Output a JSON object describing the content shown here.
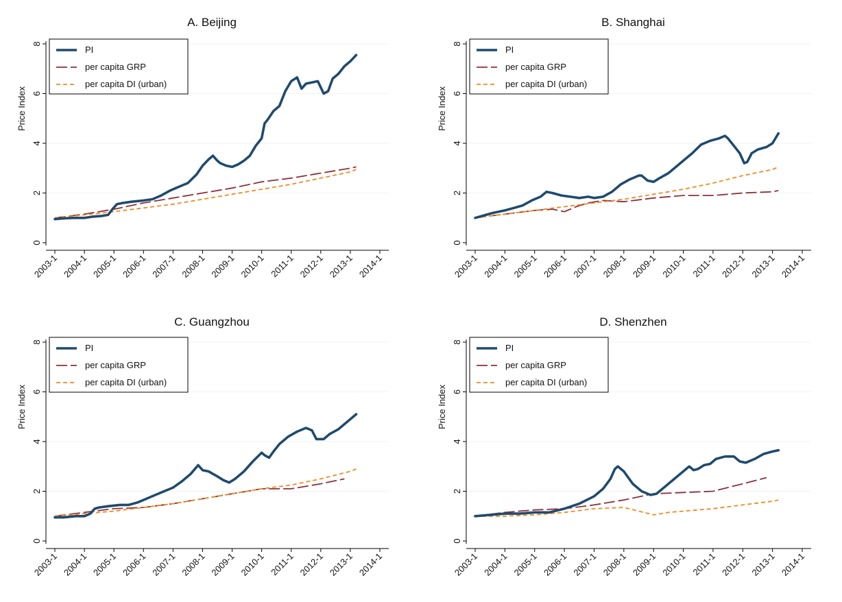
{
  "colors": {
    "pi": "#1f4a6e",
    "grp": "#8b2f3a",
    "di": "#f08a1e",
    "grid": "#eef2f4",
    "axis": "#000000"
  },
  "chart_data": [
    {
      "type": "line",
      "title": "A. Beijing",
      "ylabel": "Price Index",
      "xlabel": "",
      "ylim": [
        0,
        8
      ],
      "yticks": [
        "0",
        "2",
        "4",
        "6",
        "8"
      ],
      "xlim": [
        2003.0,
        2014.0
      ],
      "xticks": [
        "2003-1",
        "2004-1",
        "2005-1",
        "2006-1",
        "2007-1",
        "2008-1",
        "2009-1",
        "2010-1",
        "2011-1",
        "2012-1",
        "2013-1",
        "2014-1"
      ],
      "grid": true,
      "legend_position": "top-left",
      "series": [
        {
          "name": "PI",
          "style": "solid-thick",
          "x": [
            2003.0,
            2003.3,
            2003.6,
            2004.0,
            2004.3,
            2004.6,
            2004.8,
            2004.95,
            2005.1,
            2005.3,
            2005.6,
            2006.0,
            2006.3,
            2006.6,
            2006.9,
            2007.2,
            2007.5,
            2007.8,
            2008.0,
            2008.2,
            2008.35,
            2008.5,
            2008.6,
            2008.8,
            2009.0,
            2009.2,
            2009.4,
            2009.6,
            2009.8,
            2010.0,
            2010.1,
            2010.2,
            2010.4,
            2010.6,
            2010.8,
            2011.0,
            2011.2,
            2011.35,
            2011.5,
            2011.7,
            2011.9,
            2012.1,
            2012.25,
            2012.4,
            2012.6,
            2012.8,
            2013.0,
            2013.2
          ],
          "values": [
            0.95,
            0.98,
            1.0,
            1.0,
            1.05,
            1.08,
            1.12,
            1.35,
            1.55,
            1.6,
            1.65,
            1.7,
            1.75,
            1.9,
            2.1,
            2.25,
            2.4,
            2.75,
            3.1,
            3.35,
            3.5,
            3.3,
            3.2,
            3.1,
            3.05,
            3.15,
            3.3,
            3.5,
            3.9,
            4.2,
            4.8,
            4.95,
            5.3,
            5.5,
            6.1,
            6.5,
            6.65,
            6.2,
            6.4,
            6.45,
            6.5,
            6.0,
            6.1,
            6.6,
            6.8,
            7.1,
            7.3,
            7.55
          ]
        },
        {
          "name": "per capita GRP",
          "style": "long-dash",
          "x": [
            2003.0,
            2004.0,
            2005.0,
            2006.0,
            2007.0,
            2008.0,
            2009.0,
            2010.0,
            2011.0,
            2012.0,
            2013.0,
            2013.2
          ],
          "values": [
            1.0,
            1.15,
            1.35,
            1.6,
            1.8,
            2.0,
            2.2,
            2.45,
            2.6,
            2.8,
            3.0,
            3.05
          ]
        },
        {
          "name": "per capita DI (urban)",
          "style": "short-dash",
          "x": [
            2003.0,
            2004.0,
            2005.0,
            2006.0,
            2007.0,
            2008.0,
            2009.0,
            2010.0,
            2011.0,
            2012.0,
            2013.0,
            2013.2
          ],
          "values": [
            1.0,
            1.12,
            1.25,
            1.4,
            1.55,
            1.75,
            1.95,
            2.15,
            2.35,
            2.6,
            2.85,
            2.95
          ]
        }
      ]
    },
    {
      "type": "line",
      "title": "B. Shanghai",
      "ylabel": "Price Index",
      "xlabel": "",
      "ylim": [
        0,
        8
      ],
      "yticks": [
        "0",
        "2",
        "4",
        "6",
        "8"
      ],
      "xlim": [
        2003.0,
        2014.0
      ],
      "xticks": [
        "2003-1",
        "2004-1",
        "2005-1",
        "2006-1",
        "2007-1",
        "2008-1",
        "2009-1",
        "2010-1",
        "2011-1",
        "2012-1",
        "2013-1",
        "2014-1"
      ],
      "grid": true,
      "legend_position": "top-left",
      "series": [
        {
          "name": "PI",
          "style": "solid-thick",
          "x": [
            2003.0,
            2003.3,
            2003.6,
            2004.0,
            2004.3,
            2004.6,
            2004.9,
            2005.2,
            2005.4,
            2005.6,
            2005.9,
            2006.2,
            2006.5,
            2006.8,
            2007.0,
            2007.3,
            2007.6,
            2007.9,
            2008.2,
            2008.5,
            2008.6,
            2008.8,
            2009.0,
            2009.2,
            2009.5,
            2009.8,
            2010.0,
            2010.3,
            2010.6,
            2010.9,
            2011.2,
            2011.4,
            2011.5,
            2011.7,
            2011.9,
            2012.05,
            2012.15,
            2012.3,
            2012.5,
            2012.8,
            2013.0,
            2013.2
          ],
          "values": [
            1.0,
            1.1,
            1.2,
            1.3,
            1.4,
            1.5,
            1.7,
            1.85,
            2.05,
            2.0,
            1.9,
            1.85,
            1.8,
            1.85,
            1.8,
            1.85,
            2.05,
            2.35,
            2.55,
            2.7,
            2.7,
            2.5,
            2.45,
            2.6,
            2.8,
            3.1,
            3.3,
            3.6,
            3.95,
            4.1,
            4.2,
            4.3,
            4.2,
            3.9,
            3.6,
            3.2,
            3.25,
            3.6,
            3.75,
            3.85,
            4.0,
            4.4
          ]
        },
        {
          "name": "per capita GRP",
          "style": "long-dash",
          "x": [
            2003.0,
            2004.0,
            2005.0,
            2005.6,
            2006.0,
            2006.4,
            2006.8,
            2007.3,
            2008.0,
            2009.0,
            2010.0,
            2011.0,
            2012.0,
            2013.0,
            2013.2
          ],
          "values": [
            1.0,
            1.15,
            1.3,
            1.35,
            1.25,
            1.45,
            1.6,
            1.7,
            1.65,
            1.8,
            1.9,
            1.9,
            2.0,
            2.05,
            2.1
          ]
        },
        {
          "name": "per capita DI (urban)",
          "style": "short-dash",
          "x": [
            2003.0,
            2004.0,
            2005.0,
            2006.0,
            2007.0,
            2008.0,
            2009.0,
            2010.0,
            2011.0,
            2012.0,
            2013.0,
            2013.2
          ],
          "values": [
            1.0,
            1.15,
            1.3,
            1.45,
            1.6,
            1.75,
            1.95,
            2.15,
            2.4,
            2.7,
            2.95,
            3.05
          ]
        }
      ]
    },
    {
      "type": "line",
      "title": "C. Guangzhou",
      "ylabel": "Price Index",
      "xlabel": "",
      "ylim": [
        0,
        8
      ],
      "yticks": [
        "0",
        "2",
        "4",
        "6",
        "8"
      ],
      "xlim": [
        2003.0,
        2014.0
      ],
      "xticks": [
        "2003-1",
        "2004-1",
        "2005-1",
        "2006-1",
        "2007-1",
        "2008-1",
        "2009-1",
        "2010-1",
        "2011-1",
        "2012-1",
        "2013-1",
        "2014-1"
      ],
      "grid": true,
      "legend_position": "top-left",
      "series": [
        {
          "name": "PI",
          "style": "solid-thick",
          "x": [
            2003.0,
            2003.3,
            2003.7,
            2004.0,
            2004.2,
            2004.35,
            2004.5,
            2004.8,
            2005.2,
            2005.5,
            2005.8,
            2006.1,
            2006.4,
            2006.7,
            2007.0,
            2007.3,
            2007.6,
            2007.85,
            2008.0,
            2008.2,
            2008.5,
            2008.7,
            2008.9,
            2009.1,
            2009.4,
            2009.7,
            2010.0,
            2010.1,
            2010.25,
            2010.4,
            2010.6,
            2010.9,
            2011.2,
            2011.5,
            2011.7,
            2011.85,
            2012.1,
            2012.3,
            2012.6,
            2012.9,
            2013.1,
            2013.2
          ],
          "values": [
            0.95,
            0.95,
            1.0,
            1.0,
            1.1,
            1.3,
            1.35,
            1.4,
            1.45,
            1.45,
            1.55,
            1.7,
            1.85,
            2.0,
            2.15,
            2.4,
            2.7,
            3.05,
            2.85,
            2.8,
            2.6,
            2.45,
            2.35,
            2.5,
            2.8,
            3.2,
            3.55,
            3.45,
            3.35,
            3.6,
            3.9,
            4.2,
            4.4,
            4.55,
            4.45,
            4.1,
            4.1,
            4.3,
            4.5,
            4.8,
            5.0,
            5.1
          ]
        },
        {
          "name": "per capita GRP",
          "style": "long-dash",
          "x": [
            2003.0,
            2004.0,
            2005.0,
            2006.0,
            2007.0,
            2008.0,
            2009.0,
            2010.0,
            2011.0,
            2012.0,
            2012.8
          ],
          "values": [
            1.0,
            1.15,
            1.3,
            1.35,
            1.5,
            1.7,
            1.9,
            2.1,
            2.1,
            2.3,
            2.5
          ]
        },
        {
          "name": "per capita DI (urban)",
          "style": "short-dash",
          "x": [
            2003.0,
            2004.0,
            2005.0,
            2006.0,
            2007.0,
            2008.0,
            2009.0,
            2010.0,
            2011.0,
            2012.0,
            2013.0,
            2013.2
          ],
          "values": [
            1.0,
            1.1,
            1.2,
            1.35,
            1.5,
            1.7,
            1.9,
            2.1,
            2.25,
            2.5,
            2.8,
            2.9
          ]
        }
      ]
    },
    {
      "type": "line",
      "title": "D. Shenzhen",
      "ylabel": "Price Index",
      "xlabel": "",
      "ylim": [
        0,
        8
      ],
      "yticks": [
        "0",
        "2",
        "4",
        "6",
        "8"
      ],
      "xlim": [
        2003.0,
        2014.0
      ],
      "xticks": [
        "2003-1",
        "2004-1",
        "2005-1",
        "2006-1",
        "2007-1",
        "2008-1",
        "2009-1",
        "2010-1",
        "2011-1",
        "2012-1",
        "2013-1",
        "2014-1"
      ],
      "grid": true,
      "legend_position": "top-left",
      "series": [
        {
          "name": "PI",
          "style": "solid-thick",
          "x": [
            2003.0,
            2003.5,
            2004.0,
            2004.5,
            2005.0,
            2005.5,
            2006.0,
            2006.5,
            2007.0,
            2007.3,
            2007.55,
            2007.7,
            2007.8,
            2008.0,
            2008.3,
            2008.6,
            2008.9,
            2009.1,
            2009.4,
            2009.7,
            2010.0,
            2010.2,
            2010.35,
            2010.5,
            2010.7,
            2010.9,
            2011.1,
            2011.4,
            2011.7,
            2011.9,
            2012.1,
            2012.4,
            2012.7,
            2013.0,
            2013.2
          ],
          "values": [
            1.0,
            1.05,
            1.1,
            1.1,
            1.15,
            1.15,
            1.3,
            1.5,
            1.8,
            2.1,
            2.5,
            2.9,
            3.0,
            2.8,
            2.3,
            2.0,
            1.85,
            1.9,
            2.2,
            2.5,
            2.8,
            3.0,
            2.85,
            2.9,
            3.05,
            3.1,
            3.3,
            3.4,
            3.4,
            3.2,
            3.15,
            3.3,
            3.5,
            3.6,
            3.65
          ]
        },
        {
          "name": "per capita GRP",
          "style": "long-dash",
          "x": [
            2003.0,
            2004.0,
            2005.0,
            2006.0,
            2007.0,
            2008.0,
            2009.0,
            2010.0,
            2011.0,
            2012.0,
            2012.8
          ],
          "values": [
            1.0,
            1.15,
            1.25,
            1.3,
            1.45,
            1.65,
            1.9,
            1.95,
            2.0,
            2.3,
            2.55
          ]
        },
        {
          "name": "per capita DI (urban)",
          "style": "short-dash",
          "x": [
            2003.0,
            2004.0,
            2005.0,
            2006.0,
            2007.0,
            2008.0,
            2009.0,
            2009.5,
            2010.0,
            2011.0,
            2012.0,
            2013.0,
            2013.2
          ],
          "values": [
            1.0,
            1.0,
            1.05,
            1.15,
            1.3,
            1.35,
            1.05,
            1.15,
            1.2,
            1.3,
            1.45,
            1.6,
            1.65
          ]
        }
      ]
    }
  ]
}
